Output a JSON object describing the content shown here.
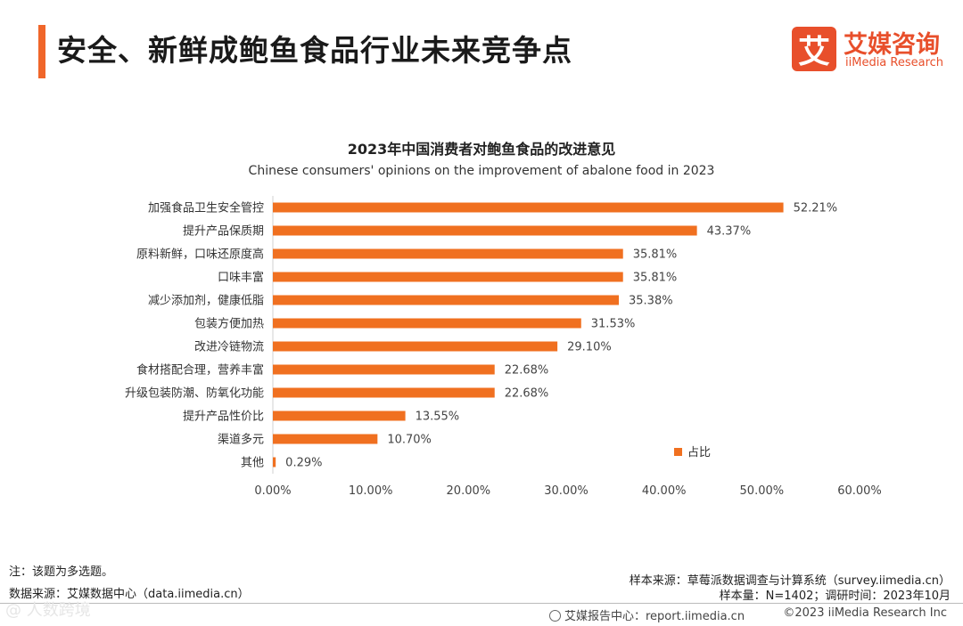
{
  "header": {
    "title": "安全、新鲜成鲍鱼食品行业未来竞争点",
    "logo_mark": "艾",
    "logo_cn": "艾媒咨询",
    "logo_en": "iiMedia Research"
  },
  "colors": {
    "accent": "#f0662a",
    "bar": "#f07020",
    "logo": "#e84f2b"
  },
  "chart_data": {
    "type": "bar",
    "orientation": "horizontal",
    "title": "2023年中国消费者对鲍鱼食品的改进意见",
    "subtitle": "Chinese consumers' opinions on the improvement of abalone food in 2023",
    "categories": [
      "加强食品卫生安全管控",
      "提升产品保质期",
      "原料新鲜，口味还原度高",
      "口味丰富",
      "减少添加剂，健康低脂",
      "包装方便加热",
      "改进冷链物流",
      "食材搭配合理，营养丰富",
      "升级包装防潮、防氧化功能",
      "提升产品性价比",
      "渠道多元",
      "其他"
    ],
    "values": [
      52.21,
      43.37,
      35.81,
      35.81,
      35.38,
      31.53,
      29.1,
      22.68,
      22.68,
      13.55,
      10.7,
      0.29
    ],
    "value_labels": [
      "52.21%",
      "43.37%",
      "35.81%",
      "35.81%",
      "35.38%",
      "31.53%",
      "29.10%",
      "22.68%",
      "22.68%",
      "13.55%",
      "10.70%",
      "0.29%"
    ],
    "xlim": [
      0,
      60
    ],
    "xticks": [
      "0.00%",
      "10.00%",
      "20.00%",
      "30.00%",
      "40.00%",
      "50.00%",
      "60.00%"
    ],
    "legend": [
      "占比"
    ],
    "legend_position": "bottom-right",
    "grid": false
  },
  "notes": {
    "note": "注：该题为多选题。",
    "data_source": "数据来源：艾媒数据中心（data.iimedia.cn）",
    "sample_source": "样本来源：草莓派数据调查与计算系统（survey.iimedia.cn）",
    "sample_size": "样本量：N=1402；调研时间：2023年10月"
  },
  "footer": {
    "report_center": "艾媒报告中心：report.iimedia.cn",
    "copyright": "©2023  iiMedia Research  Inc",
    "watermark": "@ 人数跨境"
  }
}
